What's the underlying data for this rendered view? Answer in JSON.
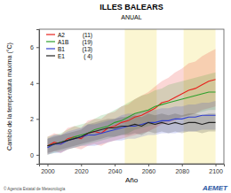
{
  "chart_data": {
    "type": "line",
    "title": "ILLES BALEARS",
    "subtitle": "ANUAL",
    "x_label": "Año",
    "y_label": "Cambio de la temperatura máxima (°C)",
    "logo": "AEMET",
    "credit": "© Agencia Estatal de Meteorología",
    "xlim": [
      1995,
      2105
    ],
    "xticks": [
      2000,
      2020,
      2040,
      2060,
      2080,
      2100
    ],
    "ylim": [
      -0.5,
      7
    ],
    "yticks": [
      0,
      2,
      4,
      6
    ],
    "grid": false,
    "legend": "top-left",
    "periods": [
      [
        2046,
        2065
      ],
      [
        2081,
        2100
      ]
    ],
    "x": [
      2000,
      2004,
      2008,
      2012,
      2016,
      2020,
      2024,
      2028,
      2032,
      2036,
      2040,
      2044,
      2048,
      2052,
      2056,
      2060,
      2064,
      2068,
      2072,
      2076,
      2080,
      2084,
      2088,
      2092,
      2096,
      2100
    ],
    "series": [
      {
        "name": "A2",
        "models_label": "(11)",
        "color": "#e8211b",
        "values": [
          0.5,
          0.7,
          0.6,
          0.9,
          1.0,
          0.9,
          1.2,
          1.3,
          1.2,
          1.5,
          1.6,
          1.8,
          1.9,
          2.1,
          2.2,
          2.4,
          2.6,
          2.9,
          3.0,
          3.2,
          3.4,
          3.6,
          3.7,
          3.9,
          4.1,
          4.2
        ],
        "lower": [
          0.0,
          0.2,
          0.1,
          0.3,
          0.4,
          0.3,
          0.5,
          0.6,
          0.5,
          0.7,
          0.8,
          0.9,
          1.0,
          1.1,
          1.2,
          1.3,
          1.5,
          1.7,
          1.8,
          1.9,
          2.1,
          2.2,
          2.3,
          2.5,
          2.6,
          2.7
        ],
        "upper": [
          1.0,
          1.2,
          1.1,
          1.5,
          1.6,
          1.5,
          1.9,
          2.0,
          2.0,
          2.3,
          2.4,
          2.7,
          2.8,
          3.1,
          3.3,
          3.5,
          3.8,
          4.1,
          4.3,
          4.6,
          4.8,
          5.1,
          5.2,
          5.5,
          5.7,
          5.9
        ]
      },
      {
        "name": "A1B",
        "models_label": "(19)",
        "color": "#2ca02c",
        "values": [
          0.5,
          0.6,
          0.7,
          0.8,
          1.0,
          1.1,
          1.2,
          1.4,
          1.5,
          1.6,
          1.8,
          1.9,
          2.1,
          2.3,
          2.4,
          2.5,
          2.7,
          2.8,
          2.9,
          3.0,
          3.1,
          3.2,
          3.3,
          3.4,
          3.5,
          3.5
        ],
        "lower": [
          0.0,
          0.1,
          0.2,
          0.3,
          0.4,
          0.5,
          0.6,
          0.7,
          0.8,
          0.9,
          1.0,
          1.1,
          1.2,
          1.4,
          1.5,
          1.6,
          1.7,
          1.8,
          1.9,
          2.0,
          2.1,
          2.2,
          2.3,
          2.4,
          2.5,
          2.5
        ],
        "upper": [
          1.0,
          1.1,
          1.2,
          1.4,
          1.6,
          1.7,
          1.8,
          2.0,
          2.2,
          2.3,
          2.5,
          2.7,
          2.9,
          3.1,
          3.3,
          3.4,
          3.6,
          3.7,
          3.9,
          4.0,
          4.1,
          4.2,
          4.3,
          4.4,
          4.5,
          4.6
        ]
      },
      {
        "name": "B1",
        "models_label": "(13)",
        "color": "#2f3fcf",
        "values": [
          0.4,
          0.6,
          0.6,
          0.8,
          0.9,
          1.0,
          1.1,
          1.1,
          1.2,
          1.3,
          1.4,
          1.5,
          1.6,
          1.6,
          1.7,
          1.8,
          1.8,
          1.9,
          1.9,
          2.0,
          2.0,
          2.1,
          2.1,
          2.2,
          2.2,
          2.2
        ],
        "lower": [
          0.0,
          0.1,
          0.1,
          0.3,
          0.4,
          0.5,
          0.5,
          0.5,
          0.6,
          0.7,
          0.8,
          0.8,
          0.9,
          0.9,
          1.0,
          1.1,
          1.1,
          1.2,
          1.2,
          1.2,
          1.3,
          1.3,
          1.3,
          1.4,
          1.4,
          1.4
        ],
        "upper": [
          0.9,
          1.1,
          1.1,
          1.3,
          1.4,
          1.5,
          1.7,
          1.7,
          1.8,
          1.9,
          2.0,
          2.2,
          2.3,
          2.3,
          2.4,
          2.5,
          2.5,
          2.6,
          2.6,
          2.7,
          2.7,
          2.8,
          2.8,
          2.9,
          2.9,
          3.0
        ]
      },
      {
        "name": "E1",
        "models_label": "( 4)",
        "color": "#222222",
        "values": [
          0.5,
          0.6,
          0.7,
          0.8,
          0.9,
          1.0,
          1.2,
          1.3,
          1.4,
          1.5,
          1.5,
          1.6,
          1.6,
          1.7,
          1.6,
          1.8,
          1.7,
          1.8,
          1.7,
          1.8,
          1.7,
          1.8,
          1.8,
          1.7,
          1.8,
          1.8
        ],
        "lower": [
          0.1,
          0.2,
          0.3,
          0.4,
          0.5,
          0.6,
          0.7,
          0.8,
          0.9,
          1.0,
          1.0,
          1.1,
          1.1,
          1.2,
          1.1,
          1.3,
          1.2,
          1.3,
          1.2,
          1.3,
          1.2,
          1.3,
          1.3,
          1.2,
          1.3,
          1.3
        ],
        "upper": [
          0.9,
          1.0,
          1.1,
          1.2,
          1.3,
          1.4,
          1.7,
          1.8,
          1.9,
          2.0,
          2.0,
          2.1,
          2.1,
          2.2,
          2.1,
          2.3,
          2.2,
          2.3,
          2.2,
          2.3,
          2.2,
          2.3,
          2.3,
          2.2,
          2.3,
          2.3
        ]
      }
    ]
  }
}
